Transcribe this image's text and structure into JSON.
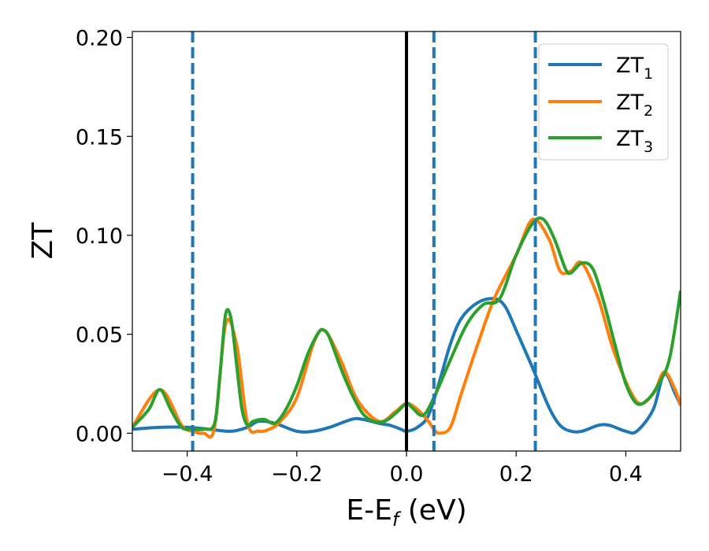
{
  "chart_data": {
    "type": "line",
    "title": "",
    "xlabel": "E-E",
    "xlabel_sub": "f",
    "xlabel_unit": " (eV)",
    "ylabel": "ZT",
    "xlim": [
      -0.5,
      0.5
    ],
    "ylim": [
      -0.009,
      0.203
    ],
    "xticks": [
      -0.4,
      -0.2,
      0.0,
      0.2,
      0.4
    ],
    "xtick_labels": [
      "−0.4",
      "−0.2",
      "0.0",
      "0.2",
      "0.4"
    ],
    "yticks": [
      0.0,
      0.05,
      0.1,
      0.15,
      0.2
    ],
    "ytick_labels": [
      "0.00",
      "0.05",
      "0.10",
      "0.15",
      "0.20"
    ],
    "grid": false,
    "legend_position": "top-right",
    "vlines_dashed": [
      -0.39,
      0.05,
      0.235
    ],
    "vline_solid": 0.0,
    "vline_dashed_color": "#1f77b4",
    "vline_solid_color": "#000000",
    "series": [
      {
        "name": "ZT",
        "name_sub": "1",
        "color": "#1f77b4",
        "x": [
          -0.5,
          -0.45,
          -0.4,
          -0.36,
          -0.32,
          -0.29,
          -0.27,
          -0.24,
          -0.2,
          -0.17,
          -0.14,
          -0.1,
          -0.08,
          -0.05,
          -0.03,
          -0.01,
          0.0,
          0.02,
          0.04,
          0.06,
          0.08,
          0.1,
          0.13,
          0.16,
          0.18,
          0.2,
          0.23,
          0.26,
          0.28,
          0.3,
          0.32,
          0.35,
          0.37,
          0.4,
          0.42,
          0.45,
          0.47,
          0.49,
          0.5
        ],
        "y": [
          0.002,
          0.003,
          0.003,
          0.002,
          0.001,
          0.003,
          0.006,
          0.005,
          0.001,
          0.001,
          0.003,
          0.007,
          0.007,
          0.005,
          0.004,
          0.002,
          0.001,
          0.003,
          0.009,
          0.026,
          0.045,
          0.058,
          0.066,
          0.068,
          0.064,
          0.052,
          0.033,
          0.013,
          0.004,
          0.001,
          0.001,
          0.004,
          0.004,
          0.001,
          0.001,
          0.012,
          0.03,
          0.02,
          0.014
        ]
      },
      {
        "name": "ZT",
        "name_sub": "2",
        "color": "#ff7f0e",
        "x": [
          -0.5,
          -0.45,
          -0.41,
          -0.39,
          -0.37,
          -0.35,
          -0.33,
          -0.31,
          -0.29,
          -0.27,
          -0.25,
          -0.23,
          -0.2,
          -0.17,
          -0.15,
          -0.12,
          -0.09,
          -0.05,
          -0.02,
          0.0,
          0.02,
          0.04,
          0.05,
          0.06,
          0.08,
          0.1,
          0.13,
          0.16,
          0.2,
          0.23,
          0.26,
          0.28,
          0.3,
          0.32,
          0.35,
          0.38,
          0.42,
          0.45,
          0.47,
          0.49,
          0.5
        ],
        "y": [
          0.003,
          0.022,
          0.004,
          0.001,
          0.0,
          0.003,
          0.055,
          0.045,
          0.005,
          0.001,
          0.002,
          0.006,
          0.018,
          0.045,
          0.052,
          0.037,
          0.017,
          0.006,
          0.011,
          0.015,
          0.012,
          0.006,
          0.002,
          0.0,
          0.003,
          0.02,
          0.045,
          0.068,
          0.09,
          0.108,
          0.098,
          0.082,
          0.082,
          0.086,
          0.068,
          0.04,
          0.016,
          0.02,
          0.031,
          0.022,
          0.014
        ]
      },
      {
        "name": "ZT",
        "name_sub": "3",
        "color": "#2ca02c",
        "x": [
          -0.5,
          -0.47,
          -0.45,
          -0.43,
          -0.41,
          -0.39,
          -0.37,
          -0.35,
          -0.34,
          -0.33,
          -0.32,
          -0.31,
          -0.3,
          -0.29,
          -0.28,
          -0.26,
          -0.24,
          -0.22,
          -0.2,
          -0.18,
          -0.16,
          -0.15,
          -0.14,
          -0.12,
          -0.1,
          -0.08,
          -0.06,
          -0.04,
          -0.02,
          0.0,
          0.01,
          0.03,
          0.05,
          0.08,
          0.11,
          0.14,
          0.17,
          0.2,
          0.23,
          0.25,
          0.27,
          0.29,
          0.3,
          0.32,
          0.34,
          0.36,
          0.38,
          0.4,
          0.42,
          0.44,
          0.46,
          0.48,
          0.5
        ],
        "y": [
          0.003,
          0.012,
          0.022,
          0.012,
          0.003,
          0.002,
          0.002,
          0.005,
          0.03,
          0.06,
          0.058,
          0.035,
          0.012,
          0.004,
          0.006,
          0.007,
          0.005,
          0.012,
          0.024,
          0.04,
          0.051,
          0.052,
          0.048,
          0.033,
          0.02,
          0.01,
          0.006,
          0.006,
          0.01,
          0.015,
          0.013,
          0.009,
          0.018,
          0.037,
          0.055,
          0.065,
          0.068,
          0.09,
          0.106,
          0.108,
          0.098,
          0.083,
          0.081,
          0.086,
          0.083,
          0.066,
          0.045,
          0.025,
          0.015,
          0.017,
          0.025,
          0.038,
          0.072
        ]
      }
    ]
  }
}
